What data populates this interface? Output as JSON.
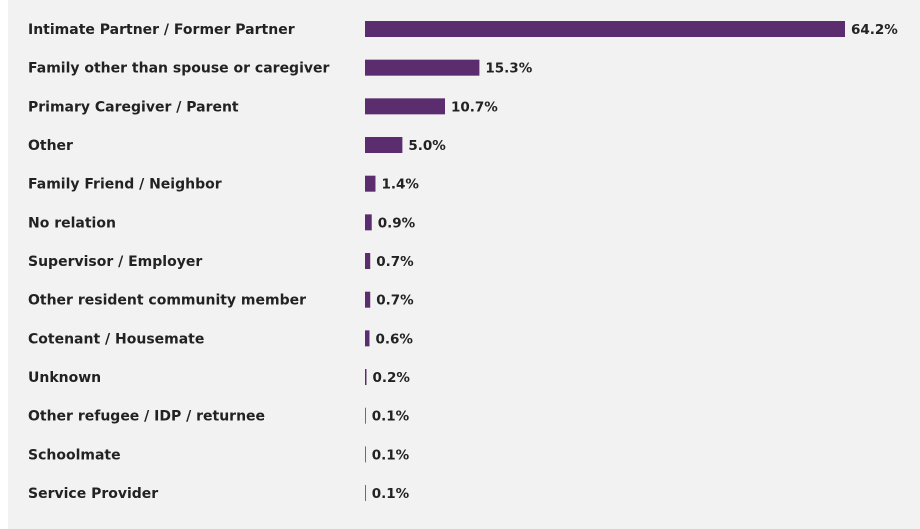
{
  "chart_data": {
    "type": "bar",
    "orientation": "horizontal",
    "categories": [
      "Intimate Partner / Former Partner",
      "Family other than spouse or caregiver",
      "Primary Caregiver / Parent",
      "Other",
      "Family Friend / Neighbor",
      "No relation",
      "Supervisor / Employer",
      "Other resident community member",
      "Cotenant / Housemate",
      "Unknown",
      "Other refugee / IDP / returnee",
      "Schoolmate",
      "Service Provider"
    ],
    "values": [
      64.2,
      15.3,
      10.7,
      5.0,
      1.4,
      0.9,
      0.7,
      0.7,
      0.6,
      0.2,
      0.1,
      0.1,
      0.1
    ],
    "value_labels": [
      "64.2%",
      "15.3%",
      "10.7%",
      "5.0%",
      "1.4%",
      "0.9%",
      "0.7%",
      "0.7%",
      "0.6%",
      "0.2%",
      "0.1%",
      "0.1%",
      "0.1%"
    ],
    "color": "#5c2d6e"
  }
}
